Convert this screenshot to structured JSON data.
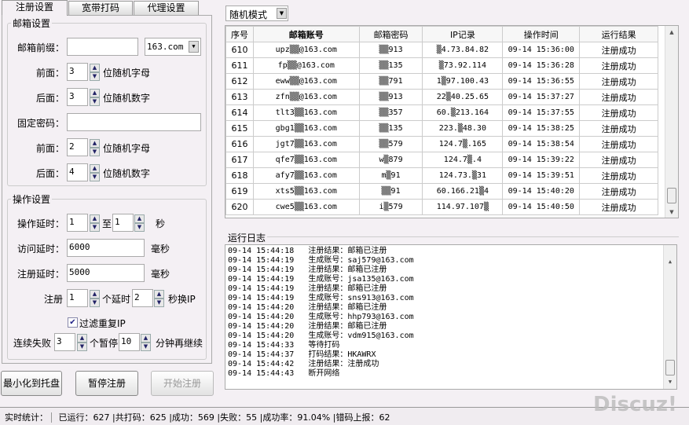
{
  "tabs": [
    "注册设置",
    "宽带打码",
    "代理设置"
  ],
  "mailbox": {
    "title": "邮箱设置",
    "prefix_label": "邮箱前缀：",
    "prefix_value": "",
    "domain": "163.com",
    "front_label": "前面：",
    "front_value": "3",
    "front_suffix": "位随机字母",
    "back_label": "后面：",
    "back_value": "3",
    "back_suffix": "位随机数字",
    "pwd_label": "固定密码：",
    "pwd_value": "",
    "pwd_front_label": "前面：",
    "pwd_front_value": "2",
    "pwd_front_suffix": "位随机字母",
    "pwd_back_label": "后面：",
    "pwd_back_value": "4",
    "pwd_back_suffix": "位随机数字"
  },
  "operation": {
    "title": "操作设置",
    "delay_label": "操作延时：",
    "delay_from": "1",
    "to": "至",
    "delay_to": "1",
    "sec": "秒",
    "visit_label": "访问延时：",
    "visit_value": "6000",
    "ms": "毫秒",
    "reg_label": "注册延时：",
    "reg_value": "5000",
    "ms2": "毫秒",
    "reg_n_label": "注册",
    "reg_n": "1",
    "per_delay": "个延时",
    "switch_sec": "2",
    "switch_ip": "秒换IP",
    "filter_label": "过滤重复IP",
    "filter_checked": true,
    "fail_label": "连续失败",
    "fail_n": "3",
    "pause": "个暂停",
    "pause_min": "10",
    "resume": "分钟再继续"
  },
  "buttons": {
    "minimize": "最小化到托盘",
    "pause": "暂停注册",
    "start": "开始注册"
  },
  "mode": "随机模式",
  "table": {
    "headers": [
      "序号",
      "邮箱账号",
      "邮箱密码",
      "IP记录",
      "操作时间",
      "运行结果"
    ],
    "rows": [
      [
        "610",
        "upz▒▒@163.com",
        "▒▒913",
        "▒4.73.84.82",
        "09-14 15:36:00",
        "注册成功"
      ],
      [
        "611",
        "fp▒▒@163.com",
        "▒▒135",
        "▒73.92.114",
        "09-14 15:36:28",
        "注册成功"
      ],
      [
        "612",
        "eww▒▒@163.com",
        "▒▒791",
        "1▒97.100.43",
        "09-14 15:36:55",
        "注册成功"
      ],
      [
        "613",
        "zfn▒▒@163.com",
        "▒▒913",
        "22▒40.25.65",
        "09-14 15:37:27",
        "注册成功"
      ],
      [
        "614",
        "tlt3▒▒163.com",
        "▒▒357",
        "60.▒213.164",
        "09-14 15:37:55",
        "注册成功"
      ],
      [
        "615",
        "gbg1▒▒163.com",
        "▒▒135",
        "223.▒48.30",
        "09-14 15:38:25",
        "注册成功"
      ],
      [
        "616",
        "jgt7▒▒163.com",
        "▒▒579",
        "124.7▒.165",
        "09-14 15:38:54",
        "注册成功"
      ],
      [
        "617",
        "qfe7▒▒163.com",
        "w▒879",
        "124.7▒.4",
        "09-14 15:39:22",
        "注册成功"
      ],
      [
        "618",
        "afy7▒▒163.com",
        "m▒91",
        "124.73.▒31",
        "09-14 15:39:51",
        "注册成功"
      ],
      [
        "619",
        "xts5▒▒163.com",
        "▒▒91",
        "60.166.21▒4",
        "09-14 15:40:20",
        "注册成功"
      ],
      [
        "620",
        "cwe5▒▒163.com",
        "i▒579",
        "114.97.107▒",
        "09-14 15:40:50",
        "注册成功"
      ]
    ]
  },
  "log": {
    "title": "运行日志",
    "lines": [
      "09-14 15:44:18   注册结果：邮箱已注册",
      "09-14 15:44:19   生成账号：saj579@163.com",
      "09-14 15:44:19   注册结果：邮箱已注册",
      "09-14 15:44:19   生成账号：jsa135@163.com",
      "09-14 15:44:19   注册结果：邮箱已注册",
      "09-14 15:44:19   生成账号：sns913@163.com",
      "09-14 15:44:20   注册结果：邮箱已注册",
      "09-14 15:44:20   生成账号：hhp793@163.com",
      "09-14 15:44:20   注册结果：邮箱已注册",
      "09-14 15:44:20   生成账号：vdm915@163.com",
      "09-14 15:44:33   等待打码",
      "09-14 15:44:37   打码结果：HKAWRX",
      "09-14 15:44:42   注册结果：注册成功",
      "09-14 15:44:43   断开网络"
    ]
  },
  "status": [
    "实时统计：",
    "已运行：627",
    "|共打码：625",
    "|成功：569",
    "|失败：55",
    "|成功率：91.04%",
    "|错码上报：62"
  ],
  "watermark": "Discuz!"
}
